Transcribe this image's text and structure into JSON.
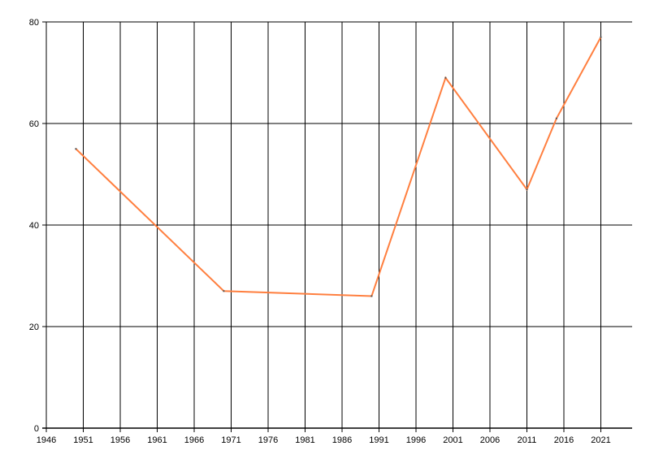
{
  "chart_data": {
    "type": "line",
    "title": "",
    "xlabel": "",
    "ylabel": "",
    "xlim": [
      1946,
      2025
    ],
    "ylim": [
      0,
      80
    ],
    "x_ticks": [
      "1946",
      "1951",
      "1956",
      "1961",
      "1966",
      "1971",
      "1976",
      "1981",
      "1986",
      "1991",
      "1996",
      "2001",
      "2006",
      "2011",
      "2016",
      "2021"
    ],
    "y_ticks": [
      "0",
      "20",
      "40",
      "60",
      "80"
    ],
    "grid": true,
    "legend": "none",
    "series": [
      {
        "color": "#FF7F3F",
        "x": [
          1950,
          1970,
          1990,
          2000,
          2011,
          2015,
          2021
        ],
        "y": [
          55,
          27,
          26,
          69,
          47,
          61,
          77
        ]
      }
    ]
  }
}
